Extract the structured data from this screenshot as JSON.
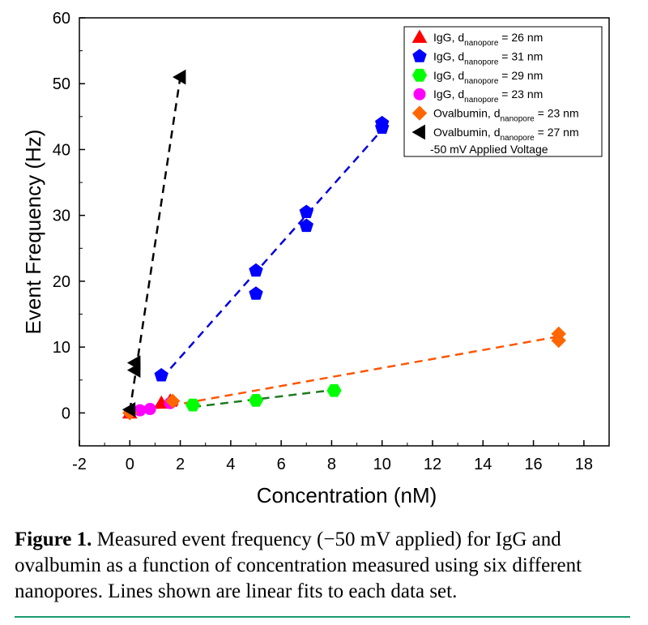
{
  "chart_data": {
    "type": "scatter",
    "title": "",
    "xlabel": "Concentration (nM)",
    "ylabel": "Event Frequency (Hz)",
    "xlim": [
      -2,
      19
    ],
    "ylim": [
      -5,
      60
    ],
    "xticks": [
      -2,
      0,
      2,
      4,
      6,
      8,
      10,
      12,
      14,
      16,
      18
    ],
    "yticks": [
      0,
      10,
      20,
      30,
      40,
      50,
      60
    ],
    "grid": false,
    "legend_position": "top-right",
    "legend_note": "-50 mV Applied Voltage",
    "series": [
      {
        "name": "IgG, d",
        "name_sub": "nanopore",
        "name_suffix": " = 26 nm",
        "marker": "triangle-up",
        "color": "#ff0000",
        "x": [
          0,
          1.25,
          1.6
        ],
        "y": [
          0.0,
          1.5,
          1.8
        ],
        "fit": null
      },
      {
        "name": "IgG, d",
        "name_sub": "nanopore",
        "name_suffix": " = 31 nm",
        "marker": "pentagon",
        "color": "#0000ff",
        "x": [
          1.25,
          5,
          5,
          7,
          7,
          10,
          10
        ],
        "y": [
          5.7,
          21.6,
          18.1,
          30.5,
          28.4,
          44.0,
          43.3
        ],
        "fit": {
          "x": [
            1.25,
            10
          ],
          "y": [
            5.2,
            43.0
          ],
          "color": "#0000dd"
        }
      },
      {
        "name": "IgG, d",
        "name_sub": "nanopore",
        "name_suffix": " = 29 nm",
        "marker": "hexagon",
        "color": "#00ff00",
        "x": [
          2.5,
          5,
          8.1
        ],
        "y": [
          1.2,
          1.9,
          3.4
        ],
        "fit": {
          "x": [
            2.5,
            8.1
          ],
          "y": [
            0.9,
            3.5
          ],
          "color": "#1e7a1e"
        }
      },
      {
        "name": "IgG, d",
        "name_sub": "nanopore",
        "name_suffix": " = 23 nm",
        "marker": "circle",
        "color": "#ff00ff",
        "x": [
          0,
          0.4,
          0.8,
          1.6
        ],
        "y": [
          0.1,
          0.4,
          0.6,
          1.5
        ],
        "fit": null
      },
      {
        "name": "Ovalbumin, d",
        "name_sub": "nanopore",
        "name_suffix": " = 23 nm",
        "marker": "diamond",
        "color": "#ff6600",
        "x": [
          0,
          1.7,
          17,
          17
        ],
        "y": [
          0.0,
          1.8,
          12.0,
          11.0
        ],
        "fit": {
          "x": [
            0,
            17
          ],
          "y": [
            0.0,
            11.6
          ],
          "color": "#ff5500"
        }
      },
      {
        "name": "Ovalbumin, d",
        "name_sub": "nanopore",
        "name_suffix": " = 27 nm",
        "marker": "triangle-left",
        "color": "#000000",
        "x": [
          0,
          0.2,
          0.2,
          2
        ],
        "y": [
          0.5,
          6.5,
          7.6,
          51.0
        ],
        "fit": {
          "x": [
            0,
            2
          ],
          "y": [
            0.3,
            51.0
          ],
          "color": "#000000"
        }
      }
    ]
  },
  "caption": {
    "label": "Figure 1.",
    "text": " Measured event frequency (−50 mV applied) for IgG and ovalbumin as a function of concentration measured using six different nanopores. Lines shown are linear fits to each data set."
  }
}
